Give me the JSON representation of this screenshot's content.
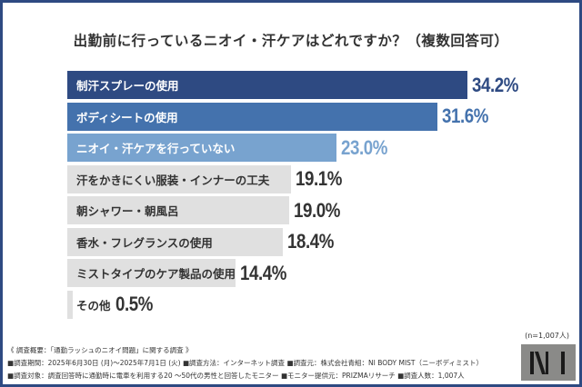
{
  "title": "出勤前に行っているニオイ・汗ケアはどれですか？（複数回答可）",
  "chart_data": {
    "type": "bar",
    "orientation": "horizontal",
    "title": "出勤前に行っているニオイ・汗ケアはどれですか？（複数回答可）",
    "categories": [
      "制汗スプレーの使用",
      "ボディシートの使用",
      "ニオイ・汗ケアを行っていない",
      "汗をかきにくい服装・インナーの工夫",
      "朝シャワー・朝風呂",
      "香水・フレグランスの使用",
      "ミストタイプのケア製品の使用",
      "その他"
    ],
    "values": [
      34.2,
      31.6,
      23.0,
      19.1,
      19.0,
      18.4,
      14.4,
      0.5
    ],
    "value_labels": [
      "34.2%",
      "31.6%",
      "23.0%",
      "19.1%",
      "19.0%",
      "18.4%",
      "14.4%",
      "0.5%"
    ],
    "bar_colors": [
      "#2e4a82",
      "#4472ad",
      "#78a3cf",
      "#e0e0e0",
      "#e0e0e0",
      "#e0e0e0",
      "#e0e0e0",
      "#e0e0e0"
    ],
    "label_colors": [
      "#ffffff",
      "#ffffff",
      "#ffffff",
      "#333333",
      "#333333",
      "#333333",
      "#333333",
      "#333333"
    ],
    "value_colors": [
      "#2e4a82",
      "#4472ad",
      "#78a3cf",
      "#333333",
      "#333333",
      "#333333",
      "#333333",
      "#333333"
    ],
    "xlim": [
      0,
      34.2
    ],
    "grid": false
  },
  "sample": "(n=1,007人)",
  "notes": {
    "heading": "《 調査概要：「通勤ラッシュのニオイ問題」に関する調査 》",
    "line1": "■調査期間：2025年6月30日 (月)～2025年7月1日 (火)  ■調査方法：インターネット調査  ■調査元：株式会社青組：NI BODY MIST（ニーボディミスト）",
    "line2": "■調査対象：調査回答時に通勤時に電車を利用する20 ～50代の男性と回答したモニター  ■モニター提供元：PRIZMAリサーチ  ■調査人数：1,007人"
  },
  "logo": "NI"
}
